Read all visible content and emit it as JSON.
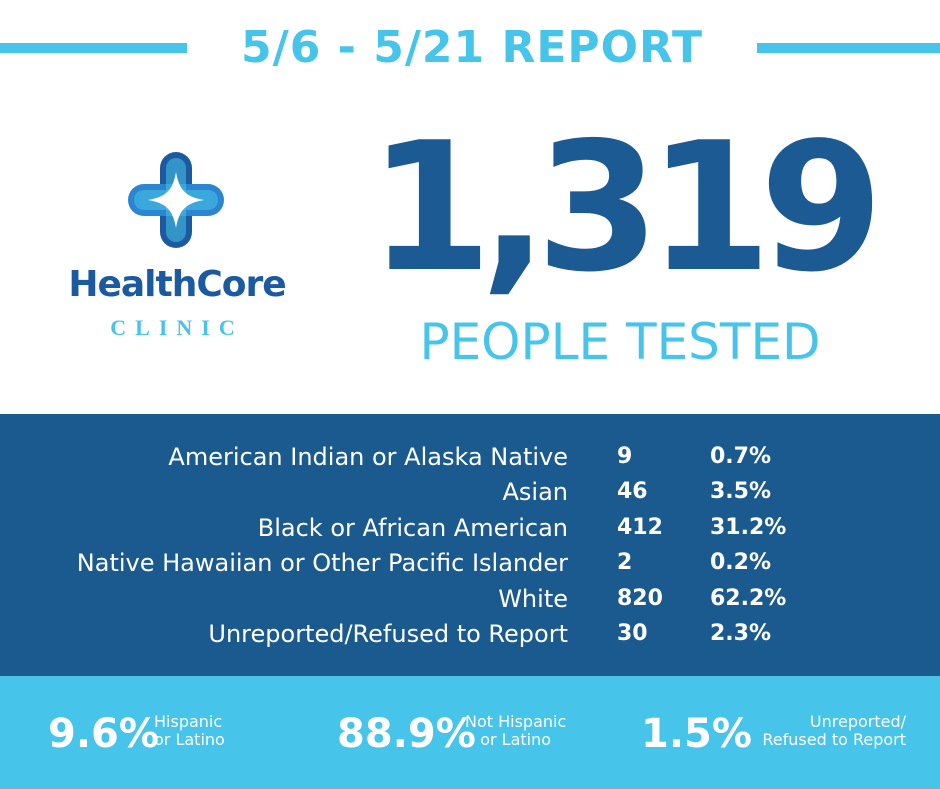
{
  "header": {
    "title": "5/6 - 5/21 REPORT"
  },
  "logo": {
    "icon": "cross-icon",
    "name": "HealthCore",
    "sub": "CLINIC"
  },
  "headline": {
    "number": "1,319",
    "caption": "PEOPLE TESTED"
  },
  "race_table": [
    {
      "label": "American Indian or Alaska Native",
      "count": "9",
      "percent": "0.7%"
    },
    {
      "label": "Asian",
      "count": "46",
      "percent": "3.5%"
    },
    {
      "label": "Black or African American",
      "count": "412",
      "percent": "31.2%"
    },
    {
      "label": "Native Hawaiian or Other Pacific Islander",
      "count": "2",
      "percent": "0.2%"
    },
    {
      "label": "White",
      "count": "820",
      "percent": "62.2%"
    },
    {
      "label": "Unreported/Refused to Report",
      "count": "30",
      "percent": "2.3%"
    }
  ],
  "ethnicity": [
    {
      "percent": "9.6%",
      "line1": "Hispanic",
      "line2": "or Latino"
    },
    {
      "percent": "88.9%",
      "line1": "Not Hispanic",
      "line2": "or Latino"
    },
    {
      "percent": "1.5%",
      "line1": "Unreported/",
      "line2": "Refused to Report"
    }
  ],
  "colors": {
    "light_blue": "#47c4ea",
    "dark_blue": "#1b5a8f",
    "brand_blue": "#1b5aa0"
  }
}
